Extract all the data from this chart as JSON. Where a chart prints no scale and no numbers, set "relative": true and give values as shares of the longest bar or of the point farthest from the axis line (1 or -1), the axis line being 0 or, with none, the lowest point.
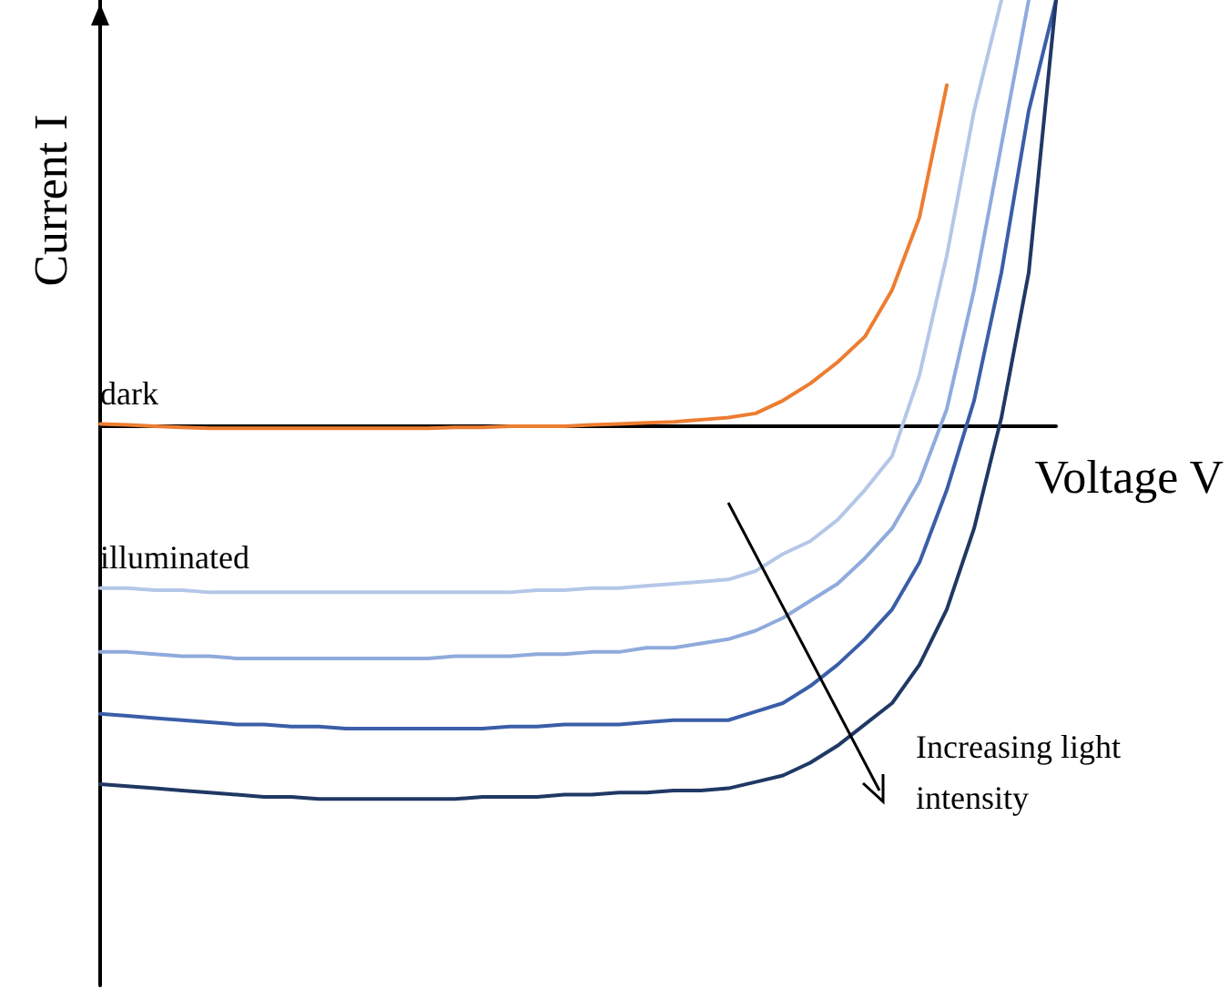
{
  "chart_data": {
    "type": "line",
    "relative": true,
    "xlabel": "Voltage V",
    "ylabel": "Current I",
    "categories": [
      null,
      null,
      null,
      null,
      null,
      null,
      null,
      null,
      null,
      null,
      null,
      null,
      null,
      null,
      null,
      null,
      null,
      null,
      null,
      null,
      null,
      null,
      null,
      null,
      null,
      null,
      null,
      null,
      null,
      null,
      null,
      null,
      null,
      null,
      null,
      null
    ],
    "series": [
      {
        "name": "dark",
        "color": "#ed7d31",
        "values": [
          0.005,
          0.003,
          0,
          -0.003,
          -0.005,
          -0.005,
          -0.005,
          -0.005,
          -0.005,
          -0.005,
          -0.005,
          -0.005,
          -0.005,
          -0.003,
          -0.003,
          0,
          0,
          0,
          0.003,
          0.005,
          0.008,
          0.01,
          0.015,
          0.02,
          0.03,
          0.06,
          0.1,
          0.15,
          0.21,
          0.32,
          0.49,
          0.8,
          null,
          null,
          null,
          null
        ]
      },
      {
        "name": "illuminated",
        "color": "#b4c7e7",
        "values": [
          -0.38,
          -0.38,
          -0.385,
          -0.385,
          -0.39,
          -0.39,
          -0.39,
          -0.39,
          -0.39,
          -0.39,
          -0.39,
          -0.39,
          -0.39,
          -0.39,
          -0.39,
          -0.39,
          -0.385,
          -0.385,
          -0.38,
          -0.38,
          -0.375,
          -0.37,
          -0.365,
          -0.36,
          -0.34,
          -0.3,
          -0.27,
          -0.22,
          -0.15,
          -0.07,
          0.12,
          0.4,
          0.74,
          1,
          null,
          null
        ]
      },
      {
        "color": "#8faadc",
        "values": [
          -0.53,
          -0.53,
          -0.535,
          -0.54,
          -0.54,
          -0.545,
          -0.545,
          -0.545,
          -0.545,
          -0.545,
          -0.545,
          -0.545,
          -0.545,
          -0.54,
          -0.54,
          -0.54,
          -0.535,
          -0.535,
          -0.53,
          -0.53,
          -0.52,
          -0.52,
          -0.51,
          -0.5,
          -0.48,
          -0.45,
          -0.41,
          -0.37,
          -0.31,
          -0.24,
          -0.13,
          0.04,
          0.32,
          0.66,
          1,
          null
        ]
      },
      {
        "color": "#3a5ea8",
        "values": [
          -0.675,
          -0.68,
          -0.685,
          -0.69,
          -0.695,
          -0.7,
          -0.7,
          -0.705,
          -0.705,
          -0.71,
          -0.71,
          -0.71,
          -0.71,
          -0.71,
          -0.71,
          -0.705,
          -0.705,
          -0.7,
          -0.7,
          -0.7,
          -0.695,
          -0.69,
          -0.69,
          -0.69,
          -0.67,
          -0.65,
          -0.61,
          -0.56,
          -0.5,
          -0.43,
          -0.32,
          -0.15,
          0.06,
          0.36,
          0.74,
          1
        ]
      },
      {
        "color": "#203864",
        "values": [
          -0.84,
          -0.845,
          -0.85,
          -0.855,
          -0.86,
          -0.865,
          -0.87,
          -0.87,
          -0.875,
          -0.875,
          -0.875,
          -0.875,
          -0.875,
          -0.875,
          -0.87,
          -0.87,
          -0.87,
          -0.865,
          -0.865,
          -0.86,
          -0.86,
          -0.855,
          -0.855,
          -0.85,
          -0.835,
          -0.82,
          -0.79,
          -0.75,
          -0.7,
          -0.65,
          -0.56,
          -0.43,
          -0.24,
          0.02,
          0.36,
          1
        ]
      }
    ],
    "annotations": [
      "Increasing light intensity"
    ],
    "marker": "none",
    "line_style": "solid",
    "grid": false,
    "legend": false
  }
}
